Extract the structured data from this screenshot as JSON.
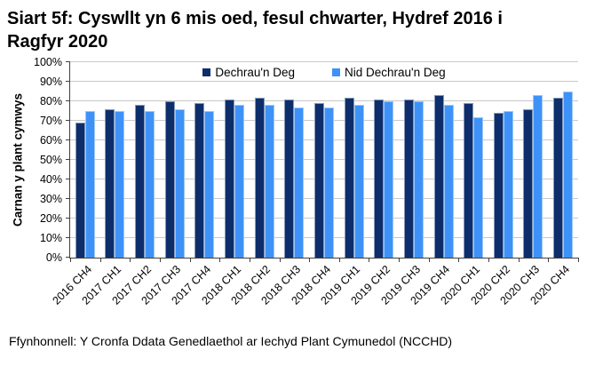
{
  "title": "Siart 5f: Cyswllt yn 6 mis oed, fesul chwarter, Hydref 2016 i Ragfyr 2020",
  "footer": {
    "source": "Ffynhonnell: Y Cronfa Ddata Genedlaethol ar Iechyd Plant Cymunedol (NCCHD)"
  },
  "chart_data": {
    "type": "bar",
    "title": "Siart 5f: Cyswllt yn 6 mis oed, fesul chwarter, Hydref 2016 i Ragfyr 2020",
    "categories": [
      "2016 CH4",
      "2017 CH1",
      "2017 CH2",
      "2017 CH3",
      "2017 CH4",
      "2018 CH1",
      "2018 CH2",
      "2018 CH3",
      "2018 CH4",
      "2019 CH1",
      "2019 CH2",
      "2019 CH3",
      "2019 CH4",
      "2020 CH1",
      "2020 CH2",
      "2020 CH3",
      "2020 CH4"
    ],
    "series": [
      {
        "name": "Dechrau'n Deg",
        "color": "#0d2e6b",
        "values": [
          69,
          76,
          78,
          80,
          79,
          81,
          82,
          81,
          79,
          82,
          81,
          81,
          83,
          79,
          74,
          76,
          82
        ]
      },
      {
        "name": "Nid Dechrau'n Deg",
        "color": "#3e92f7",
        "values": [
          75,
          75,
          75,
          76,
          75,
          78,
          78,
          77,
          77,
          78,
          80,
          80,
          78,
          72,
          75,
          83,
          85
        ]
      }
    ],
    "xlabel": "",
    "ylabel": "Carnan y plant cymwys",
    "ylim": [
      0,
      100
    ],
    "ytick_step": 10,
    "ytick_suffix": "%",
    "grid": true,
    "legend_position": "top-center",
    "xlabel_rotation_deg": 45
  }
}
